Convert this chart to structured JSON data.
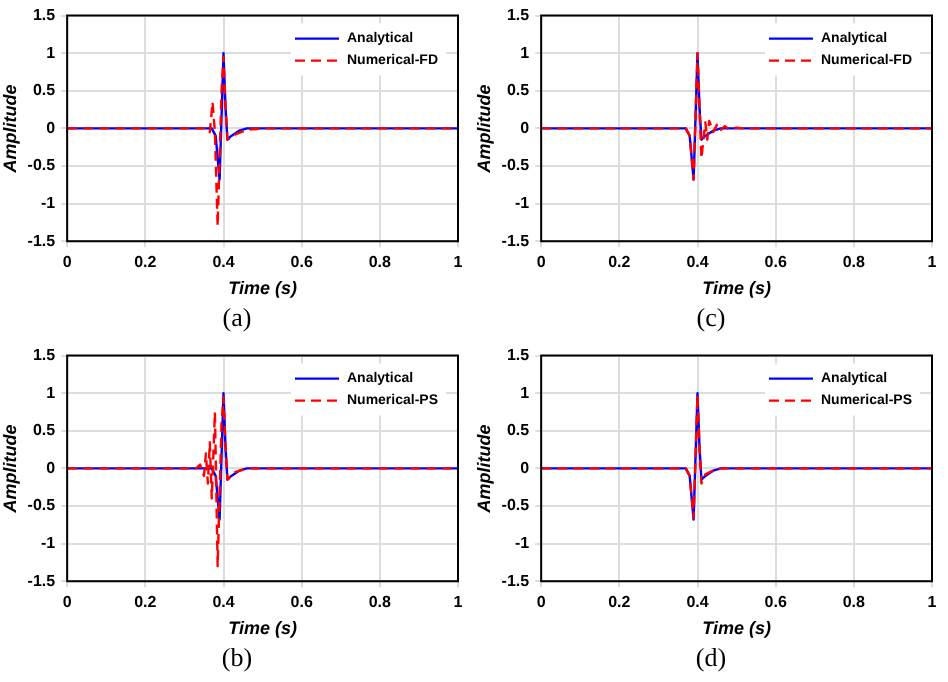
{
  "chart_data": [
    {
      "type": "line",
      "xlabel": "Time (s)",
      "ylabel": "Amplitude",
      "annotations": [
        "(a)"
      ],
      "xlim": [
        0,
        1
      ],
      "xticks": [
        0,
        0.2,
        0.4,
        0.6,
        0.8,
        1
      ],
      "ylim": [
        -1.5,
        1.5
      ],
      "yticks": [
        -1.5,
        -1,
        -0.5,
        0,
        0.5,
        1,
        1.5
      ],
      "grid": true,
      "legend": "top right",
      "marker": "none",
      "series": [
        {
          "name": "Analytical",
          "color": "#0000ff",
          "line_style": "solid",
          "x": [
            0,
            0.37,
            0.38,
            0.39,
            0.4,
            0.405,
            0.41,
            0.42,
            0.44,
            0.46,
            1
          ],
          "values": [
            0,
            0,
            -0.1,
            -0.68,
            1,
            0.3,
            -0.15,
            -0.1,
            -0.03,
            0,
            0
          ]
        },
        {
          "name": "Numerical-FD",
          "color": "#ff0000",
          "line_style": "dashed",
          "x": [
            0,
            0.36,
            0.365,
            0.372,
            0.378,
            0.385,
            0.395,
            0.4,
            0.405,
            0.41,
            0.43,
            0.46,
            0.5,
            1
          ],
          "values": [
            0,
            0,
            -0.05,
            0.35,
            -0.05,
            -1.3,
            0.5,
            0.95,
            0.3,
            -0.15,
            -0.08,
            -0.02,
            0,
            0
          ]
        }
      ]
    },
    {
      "type": "line",
      "xlabel": "Time (s)",
      "ylabel": "Amplitude",
      "annotations": [
        "(c)"
      ],
      "xlim": [
        0,
        1
      ],
      "xticks": [
        0,
        0.2,
        0.4,
        0.6,
        0.8,
        1
      ],
      "ylim": [
        -1.5,
        1.5
      ],
      "yticks": [
        -1.5,
        -1,
        -0.5,
        0,
        0.5,
        1,
        1.5
      ],
      "grid": true,
      "legend": "top right",
      "marker": "none",
      "series": [
        {
          "name": "Analytical",
          "color": "#0000ff",
          "line_style": "solid",
          "x": [
            0,
            0.37,
            0.38,
            0.39,
            0.4,
            0.405,
            0.41,
            0.42,
            0.44,
            0.46,
            1
          ],
          "values": [
            0,
            0,
            -0.1,
            -0.68,
            1,
            0.3,
            -0.15,
            -0.1,
            -0.03,
            0,
            0
          ]
        },
        {
          "name": "Numerical-FD",
          "color": "#ff0000",
          "line_style": "dashed",
          "x": [
            0,
            0.37,
            0.38,
            0.39,
            0.4,
            0.41,
            0.42,
            0.425,
            0.43,
            0.44,
            0.45,
            0.46,
            0.47,
            0.48,
            0.5,
            0.52,
            1
          ],
          "values": [
            0,
            0,
            -0.1,
            -0.68,
            1,
            -0.4,
            0.08,
            -0.15,
            0.1,
            -0.05,
            0.05,
            -0.02,
            0.03,
            -0.01,
            0.01,
            0,
            0
          ]
        }
      ]
    },
    {
      "type": "line",
      "xlabel": "Time (s)",
      "ylabel": "Amplitude",
      "annotations": [
        "(b)"
      ],
      "xlim": [
        0,
        1
      ],
      "xticks": [
        0,
        0.2,
        0.4,
        0.6,
        0.8,
        1
      ],
      "ylim": [
        -1.5,
        1.5
      ],
      "yticks": [
        -1.5,
        -1,
        -0.5,
        0,
        0.5,
        1,
        1.5
      ],
      "grid": true,
      "legend": "top right",
      "marker": "none",
      "series": [
        {
          "name": "Analytical",
          "color": "#0000ff",
          "line_style": "solid",
          "x": [
            0,
            0.37,
            0.38,
            0.39,
            0.4,
            0.405,
            0.41,
            0.42,
            0.44,
            0.46,
            1
          ],
          "values": [
            0,
            0,
            -0.1,
            -0.68,
            1,
            0.3,
            -0.15,
            -0.1,
            -0.03,
            0,
            0
          ]
        },
        {
          "name": "Numerical-PS",
          "color": "#ff0000",
          "line_style": "dashed",
          "x": [
            0,
            0.33,
            0.34,
            0.35,
            0.355,
            0.36,
            0.365,
            0.37,
            0.378,
            0.385,
            0.395,
            0.4,
            0.405,
            0.41,
            0.43,
            0.46,
            1
          ],
          "values": [
            0,
            0,
            0.05,
            -0.1,
            0.2,
            -0.2,
            0.35,
            -0.4,
            0.75,
            -1.3,
            0.6,
            0.95,
            0.3,
            -0.15,
            -0.05,
            0,
            0
          ]
        }
      ]
    },
    {
      "type": "line",
      "xlabel": "Time (s)",
      "ylabel": "Amplitude",
      "annotations": [
        "(d)"
      ],
      "xlim": [
        0,
        1
      ],
      "xticks": [
        0,
        0.2,
        0.4,
        0.6,
        0.8,
        1
      ],
      "ylim": [
        -1.5,
        1.5
      ],
      "yticks": [
        -1.5,
        -1,
        -0.5,
        0,
        0.5,
        1,
        1.5
      ],
      "grid": true,
      "legend": "top right",
      "marker": "none",
      "series": [
        {
          "name": "Analytical",
          "color": "#0000ff",
          "line_style": "solid",
          "x": [
            0,
            0.37,
            0.38,
            0.39,
            0.4,
            0.405,
            0.41,
            0.42,
            0.44,
            0.46,
            1
          ],
          "values": [
            0,
            0,
            -0.1,
            -0.68,
            1,
            0.3,
            -0.15,
            -0.1,
            -0.03,
            0,
            0
          ]
        },
        {
          "name": "Numerical-PS",
          "color": "#ff0000",
          "line_style": "dashed",
          "x": [
            0,
            0.37,
            0.38,
            0.39,
            0.4,
            0.405,
            0.41,
            0.42,
            0.44,
            0.46,
            1
          ],
          "values": [
            0,
            0,
            -0.1,
            -0.66,
            0.98,
            0.3,
            -0.2,
            -0.08,
            -0.03,
            0,
            0
          ]
        }
      ]
    }
  ]
}
